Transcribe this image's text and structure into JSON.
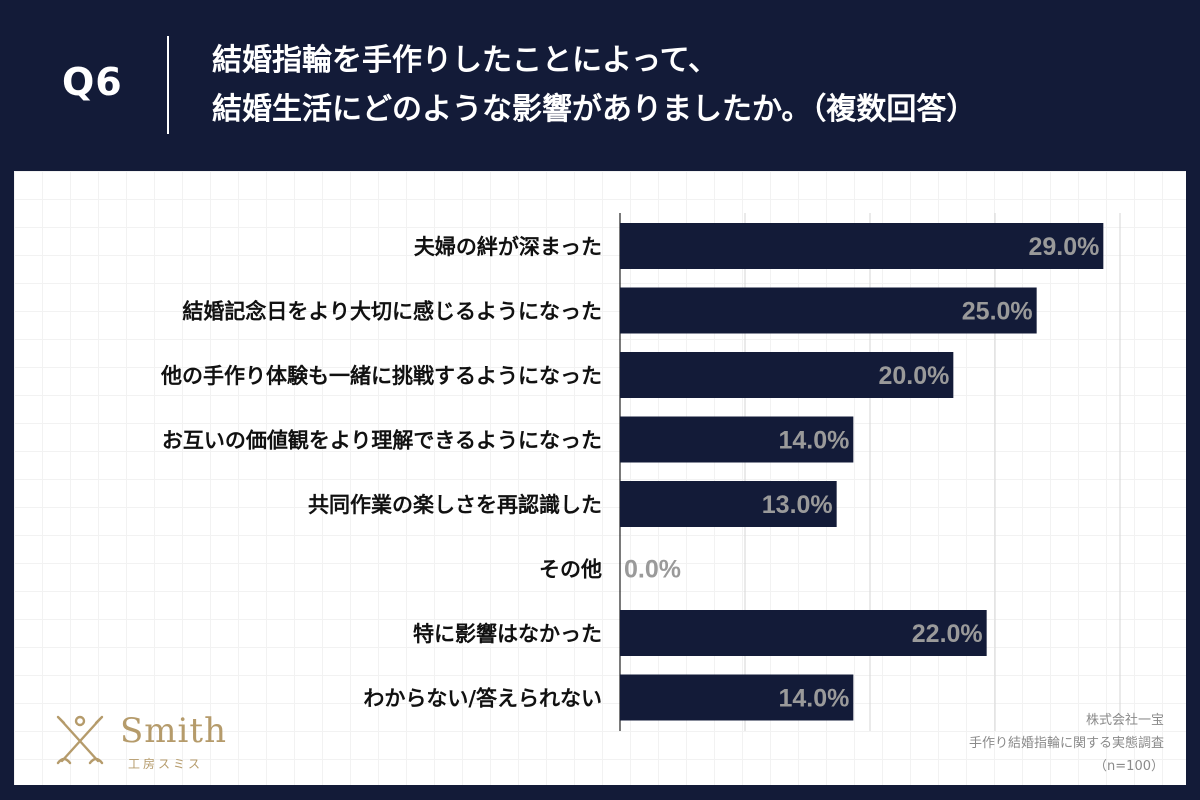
{
  "header": {
    "question_number": "Q6",
    "title_line1": "結婚指輪を手作りしたことによって、",
    "title_line2": "結婚生活にどのような影響がありましたか。（複数回答）"
  },
  "chart_data": {
    "type": "bar",
    "orientation": "horizontal",
    "categories": [
      "夫婦の絆が深まった",
      "結婚記念日をより大切に感じるようになった",
      "他の手作り体験も一緒に挑戦するようになった",
      "お互いの価値観をより理解できるようになった",
      "共同作業の楽しさを再認識した",
      "その他",
      "特に影響はなかった",
      "わからない/答えられない"
    ],
    "values": [
      29.0,
      25.0,
      20.0,
      14.0,
      13.0,
      0.0,
      22.0,
      14.0
    ],
    "value_labels": [
      "29.0%",
      "25.0%",
      "20.0%",
      "14.0%",
      "13.0%",
      "0.0%",
      "22.0%",
      "14.0%"
    ],
    "xlim": [
      0,
      30
    ],
    "gridlines": [
      0,
      7.5,
      15,
      22.5,
      30
    ],
    "grid": true,
    "bar_color": "#131b38",
    "label_color": "#9a9a9a"
  },
  "branding": {
    "logo_text": "Smith",
    "logo_subtitle": "工房スミス",
    "logo_color": "#b59b6b",
    "logo_icon": "crossed-tools-icon"
  },
  "source": {
    "company": "株式会社一宝",
    "survey": "手作り結婚指輪に関する実態調査",
    "sample": "（n=100）"
  },
  "colors": {
    "background": "#131b38",
    "panel": "#ffffff"
  }
}
